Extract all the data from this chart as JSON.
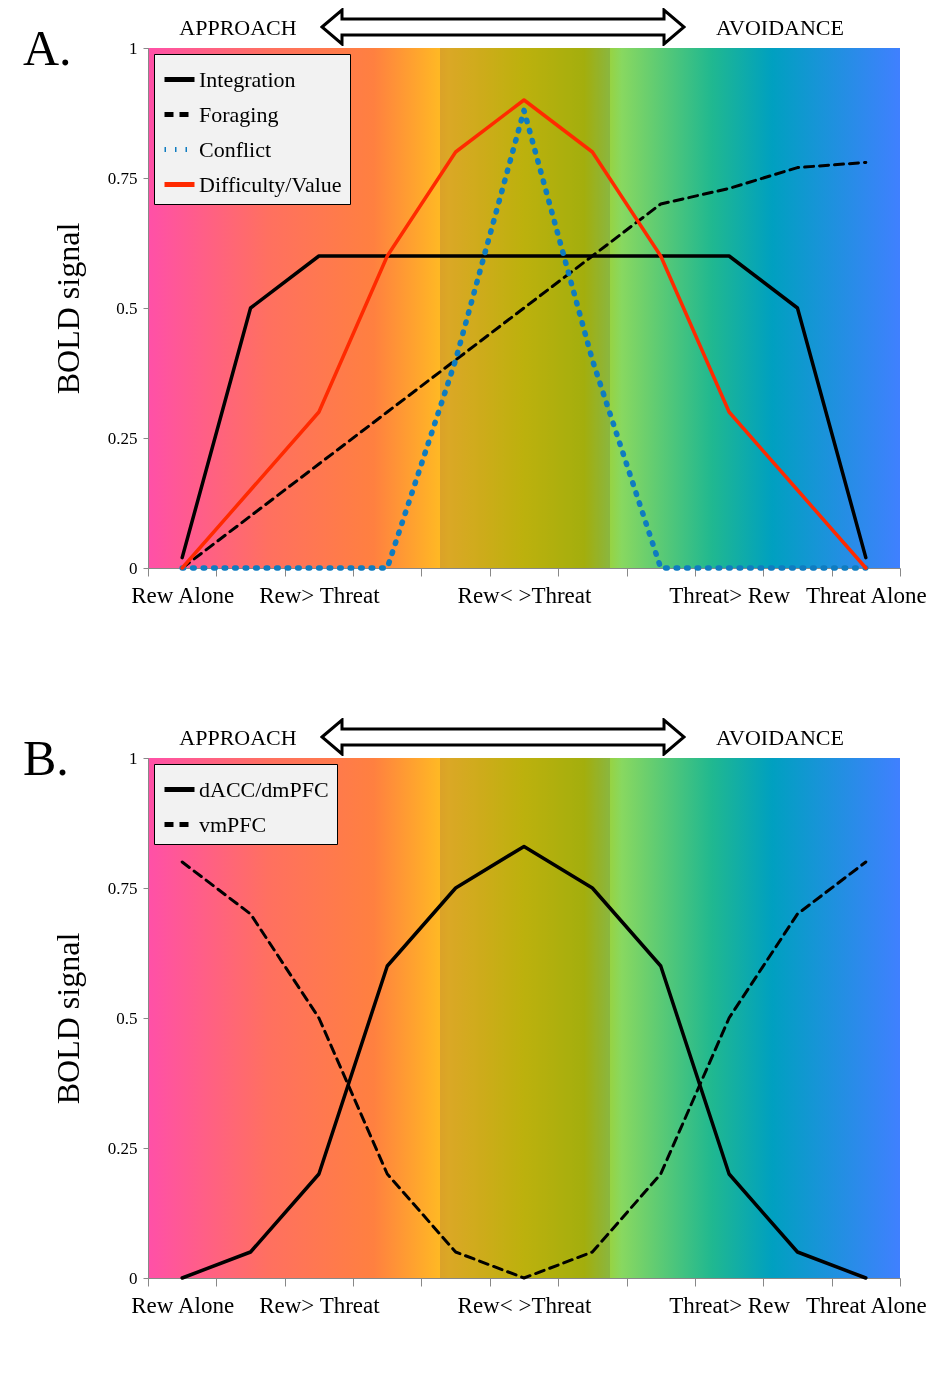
{
  "chart_data": [
    {
      "type": "line",
      "title": "A.",
      "ylabel": "BOLD signal",
      "annotations": [
        "APPROACH",
        "AVOIDANCE"
      ],
      "categories": [
        "Rew Alone",
        null,
        "Rew> Threat",
        null,
        null,
        "Rew< >Threat",
        null,
        null,
        "Threat> Rew",
        null,
        "Threat Alone"
      ],
      "series": [
        {
          "name": "Integration",
          "color": "#000000",
          "line_style": "solid",
          "values": [
            0.02,
            0.5,
            0.6,
            0.6,
            0.6,
            0.6,
            0.6,
            0.6,
            0.6,
            0.5,
            0.02
          ]
        },
        {
          "name": "Foraging",
          "color": "#000000",
          "line_style": "dashed",
          "values": [
            0,
            0.1,
            0.2,
            0.3,
            0.4,
            0.5,
            0.6,
            0.7,
            0.73,
            0.77,
            0.78
          ]
        },
        {
          "name": "Conflict",
          "color": "#0f7cc0",
          "line_style": "dotted",
          "values": [
            0,
            0,
            0,
            0,
            0.4,
            0.88,
            0.4,
            0,
            0,
            0,
            0
          ]
        },
        {
          "name": "Difficulty/Value",
          "color": "#ff2a00",
          "line_style": "solid",
          "values": [
            0,
            0.15,
            0.3,
            0.6,
            0.8,
            0.9,
            0.8,
            0.6,
            0.3,
            0.15,
            0
          ]
        }
      ],
      "ylim": [
        0,
        1
      ],
      "yticks": [
        0,
        0.25,
        0.5,
        0.75,
        1
      ],
      "legend": "top left",
      "marker": "none"
    },
    {
      "type": "line",
      "title": "B.",
      "ylabel": "BOLD signal",
      "annotations": [
        "APPROACH",
        "AVOIDANCE"
      ],
      "categories": [
        "Rew Alone",
        null,
        "Rew> Threat",
        null,
        null,
        "Rew< >Threat",
        null,
        null,
        "Threat> Rew",
        null,
        "Threat Alone"
      ],
      "series": [
        {
          "name": "dACC/dmPFC",
          "color": "#000000",
          "line_style": "solid",
          "values": [
            0,
            0.05,
            0.2,
            0.6,
            0.75,
            0.83,
            0.75,
            0.6,
            0.2,
            0.05,
            0
          ]
        },
        {
          "name": "vmPFC",
          "color": "#000000",
          "line_style": "dashed",
          "values": [
            0.8,
            0.7,
            0.5,
            0.2,
            0.05,
            0,
            0.05,
            0.2,
            0.5,
            0.7,
            0.8
          ]
        }
      ],
      "ylim": [
        0,
        1
      ],
      "yticks": [
        0,
        0.25,
        0.5,
        0.75,
        1
      ],
      "legend": "top left",
      "marker": "none"
    }
  ]
}
